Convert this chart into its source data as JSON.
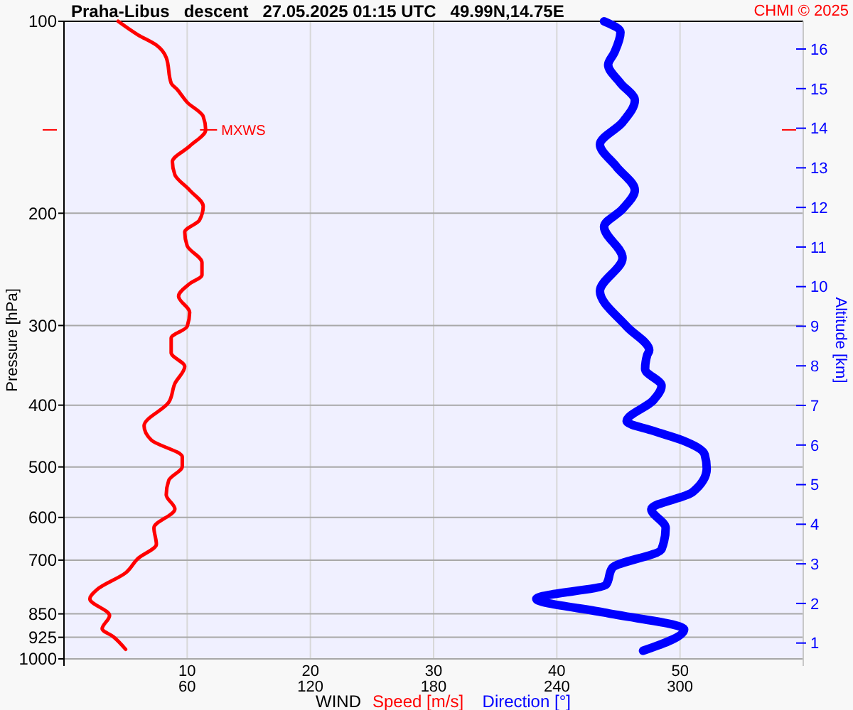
{
  "chart_data": {
    "type": "line",
    "title": "Praha-Libus   descent   27.05.2025 01:15 UTC   49.99N,14.75E",
    "ylabel": "Pressure [hPa]",
    "y2label": "Altitude [km]",
    "xlabel": "WIND",
    "annotations": [
      "CHMI © 2025",
      {
        "text": "MXWS",
        "x": 11.5,
        "y": 148
      }
    ],
    "log": "y",
    "grid": true,
    "legend": "bottom",
    "xlim": [
      0,
      60
    ],
    "xticks": [
      10,
      20,
      30,
      40,
      50
    ],
    "x2lim": [
      0,
      360
    ],
    "x2ticks": [
      60,
      120,
      180,
      240,
      300
    ],
    "ylim": [
      1000,
      100
    ],
    "yticks": [
      100,
      200,
      300,
      400,
      500,
      600,
      700,
      850,
      925,
      1000
    ],
    "y2lim": [
      0.6,
      16.7
    ],
    "y2ticks": [
      1,
      2,
      3,
      4,
      5,
      6,
      7,
      8,
      9,
      10,
      11,
      12,
      13,
      14,
      15,
      16
    ],
    "series": [
      {
        "name": "Speed [m/s]",
        "color": "#ff0000",
        "x": [
          4.4,
          6.0,
          7.5,
          8.3,
          8.7,
          9.2,
          10.0,
          11.3,
          11.5,
          10.2,
          8.8,
          9.0,
          10.2,
          11.3,
          11.0,
          9.8,
          10.0,
          11.2,
          11.2,
          10.2,
          9.3,
          10.2,
          10.0,
          8.7,
          8.7,
          9.8,
          9.0,
          8.5,
          6.5,
          7.1,
          9.6,
          9.6,
          8.5,
          8.3,
          9.0,
          7.3,
          7.5,
          6.0,
          5.0,
          2.7,
          2.1,
          3.7,
          3.1,
          4.0,
          5.0
        ],
        "values": [
          100,
          105,
          109,
          114,
          125,
          128,
          134,
          141,
          148,
          157,
          166,
          174,
          184,
          195,
          205,
          214,
          225,
          239,
          250,
          258,
          270,
          286,
          301,
          314,
          331,
          348,
          370,
          396,
          431,
          454,
          482,
          499,
          525,
          553,
          582,
          623,
          661,
          696,
          733,
          778,
          805,
          855,
          897,
          923,
          966
        ]
      },
      {
        "name": "Direction [°]",
        "color": "#0000ff",
        "axis": "x2",
        "x": [
          263,
          271,
          268,
          265,
          271,
          278,
          272,
          261,
          269,
          278,
          272,
          263,
          272,
          261,
          274,
          285,
          284,
          283,
          291,
          287,
          274,
          287,
          301,
          312,
          313,
          306,
          286,
          293,
          291,
          267,
          264,
          230,
          264,
          302,
          282
        ],
        "values": [
          100,
          104,
          112,
          117,
          125,
          133,
          144,
          156,
          169,
          184,
          197,
          210,
          235,
          265,
          301,
          328,
          334,
          351,
          373,
          393,
          424,
          439,
          454,
          478,
          503,
          548,
          582,
          623,
          673,
          720,
          765,
          805,
          847,
          899,
          971
        ]
      }
    ]
  }
}
